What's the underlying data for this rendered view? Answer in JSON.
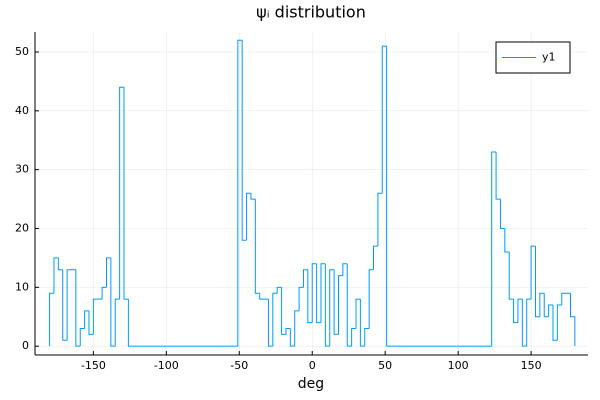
{
  "chart_data": {
    "type": "histogram",
    "title": "ψᵢ distribution",
    "x_label": "deg",
    "bins": [
      -180,
      -177,
      -174,
      -171,
      -168,
      -165,
      -162,
      -159,
      -156,
      -153,
      -150,
      -147,
      -144,
      -141,
      -138,
      -135,
      -132,
      -129,
      -126,
      -123,
      -120,
      -117,
      -114,
      -111,
      -108,
      -105,
      -102,
      -99,
      -96,
      -93,
      -90,
      -87,
      -84,
      -81,
      -78,
      -75,
      -72,
      -69,
      -66,
      -63,
      -60,
      -57,
      -54,
      -51,
      -48,
      -45,
      -42,
      -39,
      -36,
      -33,
      -30,
      -27,
      -24,
      -21,
      -18,
      -15,
      -12,
      -9,
      -6,
      -3,
      0,
      3,
      6,
      9,
      12,
      15,
      18,
      21,
      24,
      27,
      30,
      33,
      36,
      39,
      42,
      45,
      48,
      51,
      54,
      57,
      60,
      63,
      66,
      69,
      72,
      75,
      78,
      81,
      84,
      87,
      90,
      93,
      96,
      99,
      102,
      105,
      108,
      111,
      114,
      117,
      120,
      123,
      126,
      129,
      132,
      135,
      138,
      141,
      144,
      147,
      150,
      153,
      156,
      159,
      162,
      165,
      168,
      171,
      174,
      177,
      180
    ],
    "series": [
      {
        "name": "y1",
        "color": "#009af9",
        "values": [
          9,
          15,
          13,
          1,
          13,
          13,
          0,
          3,
          6,
          2,
          8,
          8,
          10,
          15,
          0,
          8,
          44,
          8,
          0,
          0,
          0,
          0,
          0,
          0,
          0,
          0,
          0,
          0,
          0,
          0,
          0,
          0,
          0,
          0,
          0,
          0,
          0,
          0,
          0,
          0,
          0,
          0,
          0,
          52,
          18,
          26,
          25,
          9,
          8,
          8,
          0,
          9,
          10,
          2,
          3,
          0,
          6,
          10,
          13,
          4,
          14,
          4,
          14,
          0,
          13,
          2,
          12,
          14,
          0,
          3,
          8,
          0,
          3,
          13,
          17,
          26,
          51,
          0,
          0,
          0,
          0,
          0,
          0,
          0,
          0,
          0,
          0,
          0,
          0,
          0,
          0,
          0,
          0,
          0,
          0,
          0,
          0,
          0,
          0,
          0,
          0,
          33,
          25,
          20,
          16,
          8,
          4,
          8,
          0,
          8,
          17,
          5,
          9,
          5,
          7,
          1,
          7,
          9,
          9,
          5
        ]
      }
    ],
    "xlim": [
      -190,
      189
    ],
    "xticks": [
      -150,
      -100,
      -50,
      0,
      50,
      100,
      150
    ],
    "ylim": [
      -1.5,
      53.4
    ],
    "yticks": [
      0,
      10,
      20,
      30,
      40,
      50
    ],
    "grid": true,
    "legend": "top-right"
  }
}
